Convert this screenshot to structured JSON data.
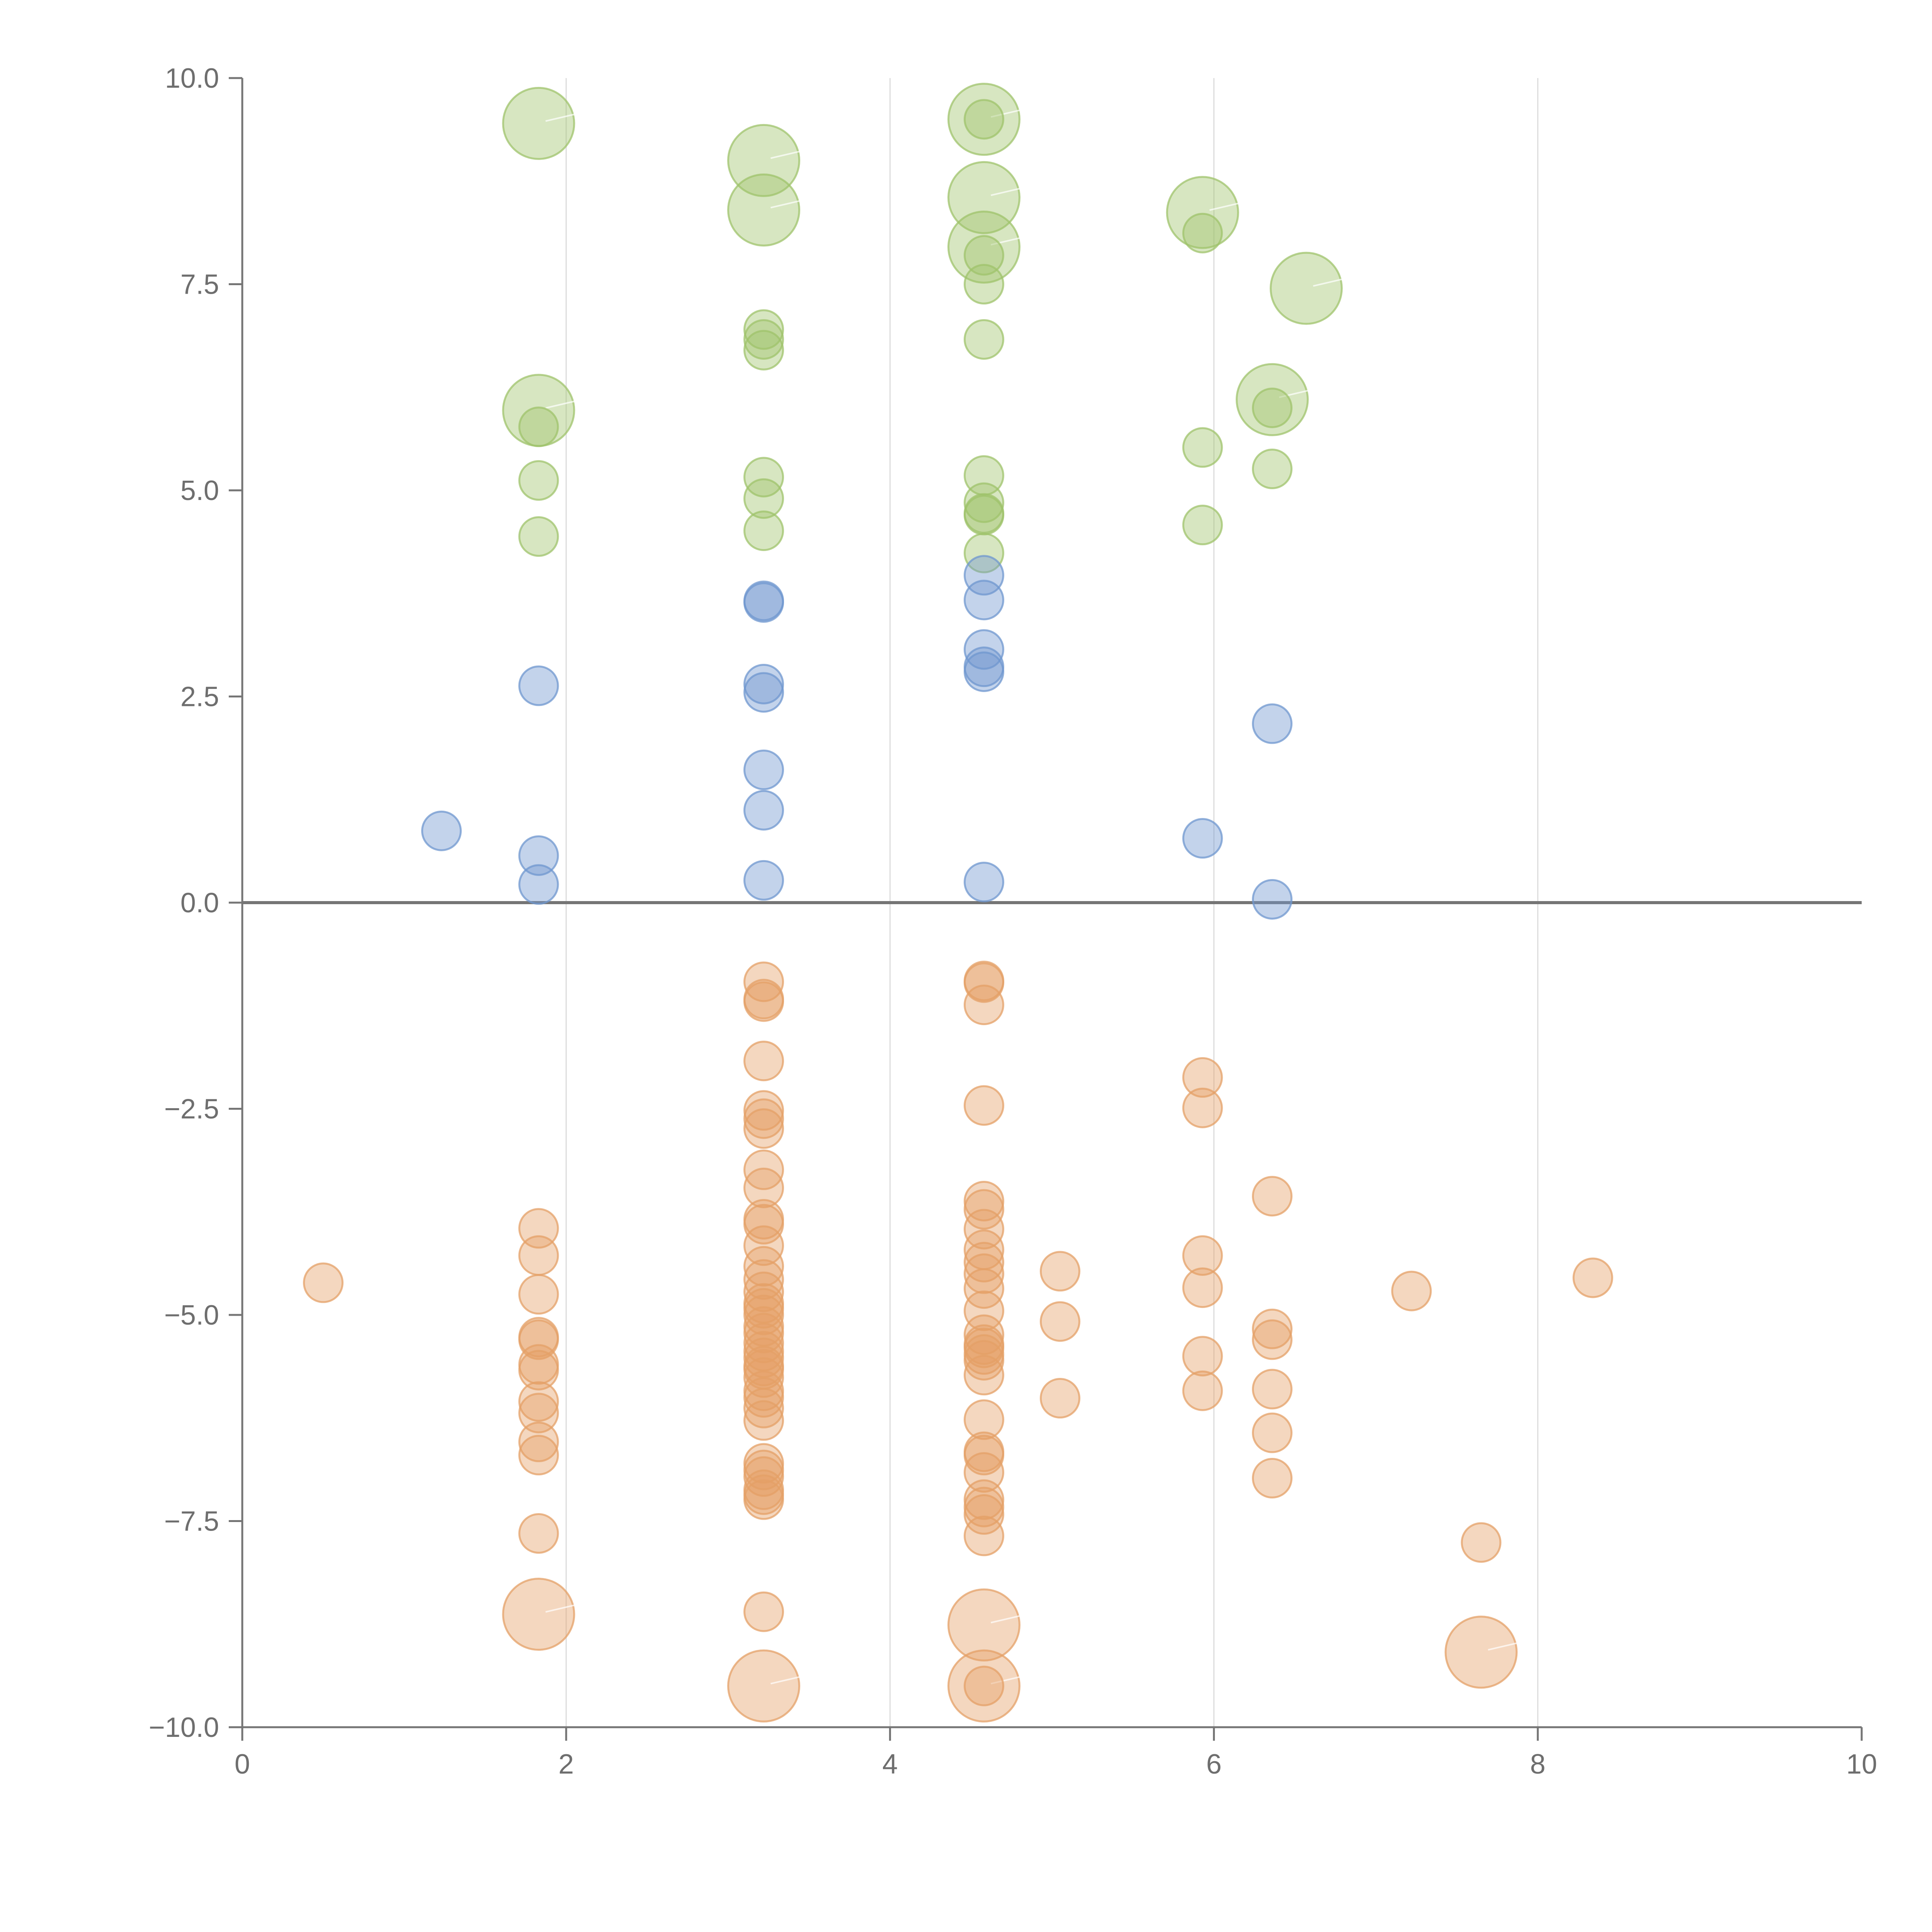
{
  "chart_data": {
    "type": "scatter",
    "title": "",
    "xlabel": "",
    "ylabel": "",
    "xlim": [
      0,
      10
    ],
    "ylim": [
      -10,
      10
    ],
    "grid": "vertical",
    "x_ticks": [
      0,
      2,
      4,
      6,
      8,
      10
    ],
    "y_ticks": [
      10.0,
      7.5,
      5.0,
      2.5,
      0.0,
      -2.5,
      -5.0,
      -7.5,
      -10.0
    ],
    "x_tick_labels": [
      "0",
      "2",
      "4",
      "6",
      "8",
      "10"
    ],
    "y_tick_labels": [
      "10.0",
      "7.5",
      "5.0",
      "2.5",
      "0.0",
      "−2.5",
      "−5.0",
      "−7.5",
      "−10.0"
    ],
    "reference_line_y": 0,
    "colors": {
      "green": "#9fc36b",
      "blue": "#6f97cf",
      "orange": "#e4a067"
    },
    "series": [
      {
        "name": "green",
        "color": "#9fc36b",
        "points": [
          {
            "x": 1.83,
            "y": 9.45,
            "r": "large"
          },
          {
            "x": 3.22,
            "y": 9.0,
            "r": "large"
          },
          {
            "x": 3.22,
            "y": 8.4,
            "r": "large"
          },
          {
            "x": 4.58,
            "y": 9.5,
            "r": "large"
          },
          {
            "x": 4.58,
            "y": 8.55,
            "r": "large"
          },
          {
            "x": 4.58,
            "y": 7.95,
            "r": "large"
          },
          {
            "x": 5.93,
            "y": 8.37,
            "r": "large"
          },
          {
            "x": 6.57,
            "y": 7.45,
            "r": "large"
          },
          {
            "x": 6.36,
            "y": 6.1,
            "r": "large"
          },
          {
            "x": 1.83,
            "y": 5.97,
            "r": "large"
          },
          {
            "x": 4.58,
            "y": 9.5,
            "r": "small"
          },
          {
            "x": 5.93,
            "y": 8.12,
            "r": "small"
          },
          {
            "x": 4.58,
            "y": 7.85,
            "r": "small"
          },
          {
            "x": 4.58,
            "y": 7.5,
            "r": "small"
          },
          {
            "x": 3.22,
            "y": 6.95,
            "r": "small"
          },
          {
            "x": 3.22,
            "y": 6.83,
            "r": "small"
          },
          {
            "x": 3.22,
            "y": 6.7,
            "r": "small"
          },
          {
            "x": 4.58,
            "y": 6.83,
            "r": "small"
          },
          {
            "x": 6.36,
            "y": 6.0,
            "r": "small"
          },
          {
            "x": 1.83,
            "y": 5.77,
            "r": "small"
          },
          {
            "x": 5.93,
            "y": 5.52,
            "r": "small"
          },
          {
            "x": 6.36,
            "y": 5.26,
            "r": "small"
          },
          {
            "x": 1.83,
            "y": 5.12,
            "r": "small"
          },
          {
            "x": 3.22,
            "y": 5.16,
            "r": "small"
          },
          {
            "x": 4.58,
            "y": 5.18,
            "r": "small"
          },
          {
            "x": 3.22,
            "y": 4.9,
            "r": "small"
          },
          {
            "x": 4.58,
            "y": 4.85,
            "r": "small"
          },
          {
            "x": 4.58,
            "y": 4.72,
            "r": "small"
          },
          {
            "x": 4.58,
            "y": 4.7,
            "r": "small"
          },
          {
            "x": 5.93,
            "y": 4.58,
            "r": "small"
          },
          {
            "x": 3.22,
            "y": 4.51,
            "r": "small"
          },
          {
            "x": 1.83,
            "y": 4.44,
            "r": "small"
          },
          {
            "x": 4.58,
            "y": 4.24,
            "r": "small"
          }
        ]
      },
      {
        "name": "blue",
        "color": "#6f97cf",
        "points": [
          {
            "x": 4.58,
            "y": 3.97
          },
          {
            "x": 4.58,
            "y": 3.67
          },
          {
            "x": 3.22,
            "y": 3.66
          },
          {
            "x": 3.22,
            "y": 3.64
          },
          {
            "x": 4.58,
            "y": 3.07
          },
          {
            "x": 4.58,
            "y": 2.86
          },
          {
            "x": 4.58,
            "y": 2.8
          },
          {
            "x": 3.22,
            "y": 2.65
          },
          {
            "x": 1.83,
            "y": 2.63
          },
          {
            "x": 3.22,
            "y": 2.55
          },
          {
            "x": 6.36,
            "y": 2.17
          },
          {
            "x": 3.22,
            "y": 1.61
          },
          {
            "x": 3.22,
            "y": 1.12
          },
          {
            "x": 1.23,
            "y": 0.87
          },
          {
            "x": 5.93,
            "y": 0.78
          },
          {
            "x": 1.83,
            "y": 0.57
          },
          {
            "x": 3.22,
            "y": 0.27
          },
          {
            "x": 4.58,
            "y": 0.25
          },
          {
            "x": 1.83,
            "y": 0.22
          },
          {
            "x": 6.36,
            "y": 0.04
          }
        ]
      },
      {
        "name": "orange",
        "color": "#e4a067",
        "points": [
          {
            "x": 1.83,
            "y": -8.63,
            "r": "large"
          },
          {
            "x": 3.22,
            "y": -9.5,
            "r": "large"
          },
          {
            "x": 4.58,
            "y": -8.76,
            "r": "large"
          },
          {
            "x": 4.58,
            "y": -9.5,
            "r": "large"
          },
          {
            "x": 7.65,
            "y": -9.09,
            "r": "large"
          },
          {
            "x": 3.22,
            "y": -0.96,
            "r": "small"
          },
          {
            "x": 4.58,
            "y": -0.95,
            "r": "small"
          },
          {
            "x": 4.58,
            "y": -0.97,
            "r": "small"
          },
          {
            "x": 3.22,
            "y": -1.17,
            "r": "small"
          },
          {
            "x": 3.22,
            "y": -1.2,
            "r": "small"
          },
          {
            "x": 4.58,
            "y": -1.24,
            "r": "small"
          },
          {
            "x": 3.22,
            "y": -1.92,
            "r": "small"
          },
          {
            "x": 5.93,
            "y": -2.12,
            "r": "small"
          },
          {
            "x": 4.58,
            "y": -2.46,
            "r": "small"
          },
          {
            "x": 5.93,
            "y": -2.49,
            "r": "small"
          },
          {
            "x": 3.22,
            "y": -2.52,
            "r": "small"
          },
          {
            "x": 3.22,
            "y": -2.62,
            "r": "small"
          },
          {
            "x": 3.22,
            "y": -2.74,
            "r": "small"
          },
          {
            "x": 3.22,
            "y": -3.24,
            "r": "small"
          },
          {
            "x": 3.22,
            "y": -3.46,
            "r": "small"
          },
          {
            "x": 6.36,
            "y": -3.56,
            "r": "small"
          },
          {
            "x": 4.58,
            "y": -3.62,
            "r": "small"
          },
          {
            "x": 4.58,
            "y": -3.72,
            "r": "small"
          },
          {
            "x": 3.22,
            "y": -3.84,
            "r": "small"
          },
          {
            "x": 3.22,
            "y": -3.9,
            "r": "small"
          },
          {
            "x": 1.83,
            "y": -3.95,
            "r": "small"
          },
          {
            "x": 4.58,
            "y": -3.96,
            "r": "small"
          },
          {
            "x": 3.22,
            "y": -4.16,
            "r": "small"
          },
          {
            "x": 4.58,
            "y": -4.21,
            "r": "small"
          },
          {
            "x": 1.83,
            "y": -4.28,
            "r": "small"
          },
          {
            "x": 5.93,
            "y": -4.28,
            "r": "small"
          },
          {
            "x": 4.58,
            "y": -4.36,
            "r": "small"
          },
          {
            "x": 3.22,
            "y": -4.41,
            "r": "small"
          },
          {
            "x": 5.05,
            "y": -4.47,
            "r": "small"
          },
          {
            "x": 4.58,
            "y": -4.5,
            "r": "small"
          },
          {
            "x": 0.5,
            "y": -4.61,
            "r": "small"
          },
          {
            "x": 3.22,
            "y": -4.57,
            "r": "small"
          },
          {
            "x": 8.34,
            "y": -4.55,
            "r": "small"
          },
          {
            "x": 4.58,
            "y": -4.68,
            "r": "small"
          },
          {
            "x": 5.93,
            "y": -4.67,
            "r": "small"
          },
          {
            "x": 3.22,
            "y": -4.72,
            "r": "small"
          },
          {
            "x": 7.22,
            "y": -4.71,
            "r": "small"
          },
          {
            "x": 1.83,
            "y": -4.75,
            "r": "small"
          },
          {
            "x": 3.22,
            "y": -4.86,
            "r": "small"
          },
          {
            "x": 3.22,
            "y": -4.92,
            "r": "small"
          },
          {
            "x": 4.58,
            "y": -4.95,
            "r": "small"
          },
          {
            "x": 3.22,
            "y": -5.0,
            "r": "small"
          },
          {
            "x": 5.05,
            "y": -5.08,
            "r": "small"
          },
          {
            "x": 3.22,
            "y": -5.14,
            "r": "small"
          },
          {
            "x": 6.36,
            "y": -5.17,
            "r": "small"
          },
          {
            "x": 3.22,
            "y": -5.22,
            "r": "small"
          },
          {
            "x": 4.58,
            "y": -5.24,
            "r": "small"
          },
          {
            "x": 1.83,
            "y": -5.27,
            "r": "small"
          },
          {
            "x": 1.83,
            "y": -5.3,
            "r": "small"
          },
          {
            "x": 6.36,
            "y": -5.3,
            "r": "small"
          },
          {
            "x": 3.22,
            "y": -5.34,
            "r": "small"
          },
          {
            "x": 4.58,
            "y": -5.36,
            "r": "small"
          },
          {
            "x": 4.58,
            "y": -5.4,
            "r": "small"
          },
          {
            "x": 3.22,
            "y": -5.44,
            "r": "small"
          },
          {
            "x": 4.58,
            "y": -5.48,
            "r": "small"
          },
          {
            "x": 3.22,
            "y": -5.52,
            "r": "small"
          },
          {
            "x": 5.93,
            "y": -5.5,
            "r": "small"
          },
          {
            "x": 4.58,
            "y": -5.55,
            "r": "small"
          },
          {
            "x": 1.83,
            "y": -5.6,
            "r": "small"
          },
          {
            "x": 3.22,
            "y": -5.62,
            "r": "small"
          },
          {
            "x": 3.22,
            "y": -5.66,
            "r": "small"
          },
          {
            "x": 1.83,
            "y": -5.67,
            "r": "small"
          },
          {
            "x": 4.58,
            "y": -5.73,
            "r": "small"
          },
          {
            "x": 3.22,
            "y": -5.76,
            "r": "small"
          },
          {
            "x": 6.36,
            "y": -5.9,
            "r": "small"
          },
          {
            "x": 5.93,
            "y": -5.92,
            "r": "small"
          },
          {
            "x": 3.22,
            "y": -5.92,
            "r": "small"
          },
          {
            "x": 3.22,
            "y": -6.0,
            "r": "small"
          },
          {
            "x": 5.05,
            "y": -6.01,
            "r": "small"
          },
          {
            "x": 1.83,
            "y": -6.05,
            "r": "small"
          },
          {
            "x": 3.22,
            "y": -6.13,
            "r": "small"
          },
          {
            "x": 1.83,
            "y": -6.19,
            "r": "small"
          },
          {
            "x": 3.22,
            "y": -6.28,
            "r": "small"
          },
          {
            "x": 4.58,
            "y": -6.27,
            "r": "small"
          },
          {
            "x": 6.36,
            "y": -6.43,
            "r": "small"
          },
          {
            "x": 1.83,
            "y": -6.54,
            "r": "small"
          },
          {
            "x": 4.58,
            "y": -6.66,
            "r": "small"
          },
          {
            "x": 4.58,
            "y": -6.7,
            "r": "small"
          },
          {
            "x": 1.83,
            "y": -6.7,
            "r": "small"
          },
          {
            "x": 3.22,
            "y": -6.8,
            "r": "small"
          },
          {
            "x": 3.22,
            "y": -6.88,
            "r": "small"
          },
          {
            "x": 4.58,
            "y": -6.91,
            "r": "small"
          },
          {
            "x": 3.22,
            "y": -6.96,
            "r": "small"
          },
          {
            "x": 6.36,
            "y": -6.98,
            "r": "small"
          },
          {
            "x": 3.22,
            "y": -7.12,
            "r": "small"
          },
          {
            "x": 3.22,
            "y": -7.18,
            "r": "small"
          },
          {
            "x": 3.22,
            "y": -7.24,
            "r": "small"
          },
          {
            "x": 4.58,
            "y": -7.24,
            "r": "small"
          },
          {
            "x": 4.58,
            "y": -7.33,
            "r": "small"
          },
          {
            "x": 4.58,
            "y": -7.42,
            "r": "small"
          },
          {
            "x": 1.83,
            "y": -7.65,
            "r": "small"
          },
          {
            "x": 4.58,
            "y": -7.68,
            "r": "small"
          },
          {
            "x": 7.65,
            "y": -7.76,
            "r": "small"
          },
          {
            "x": 3.22,
            "y": -8.6,
            "r": "small"
          },
          {
            "x": 4.58,
            "y": -9.5,
            "r": "small"
          }
        ]
      }
    ]
  }
}
